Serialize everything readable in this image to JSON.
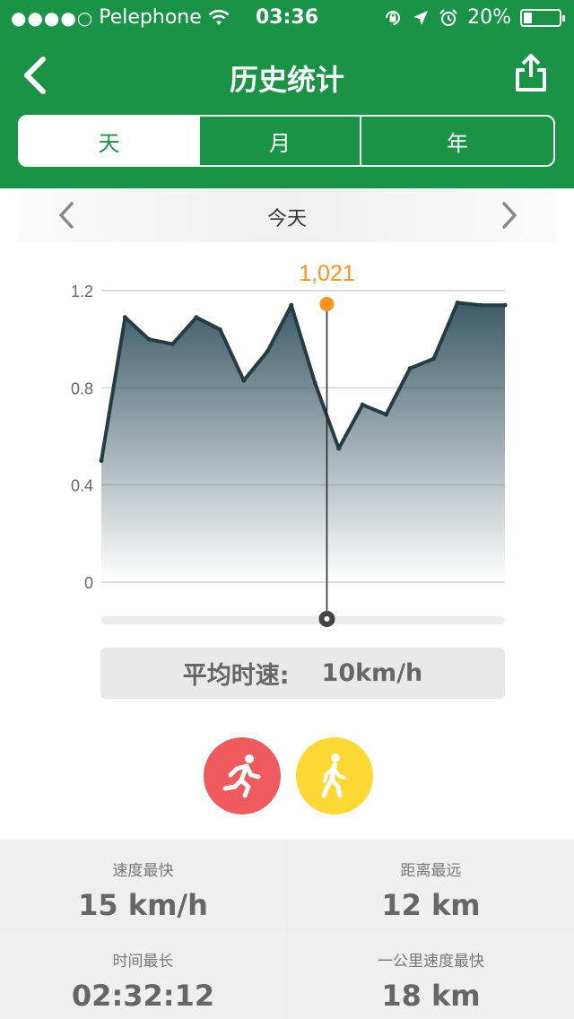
{
  "status_bar": {
    "signal": "●●●●○",
    "carrier": "Pelephone",
    "time": "03:36",
    "battery": "20%"
  },
  "nav": {
    "title": "历史统计"
  },
  "tabs": [
    {
      "label": "天",
      "selected": true
    },
    {
      "label": "月",
      "selected": false
    },
    {
      "label": "年",
      "selected": false
    }
  ],
  "date_nav": {
    "label": "今天"
  },
  "chart_data": {
    "type": "area",
    "x": [
      0,
      1,
      2,
      3,
      4,
      5,
      6,
      7,
      8,
      9,
      10,
      11,
      12,
      13,
      14,
      15,
      16,
      17
    ],
    "values": [
      0.5,
      1.09,
      1.0,
      0.98,
      1.09,
      1.04,
      0.83,
      0.95,
      1.14,
      0.82,
      0.55,
      0.73,
      0.69,
      0.88,
      0.92,
      1.15,
      1.14,
      1.14
    ],
    "ylim": [
      0,
      1.2
    ],
    "y_ticks": [
      "1.2",
      "0.8",
      "0.4",
      "0"
    ],
    "y_tick_values": [
      1.2,
      0.8,
      0.4,
      0
    ],
    "grid": true,
    "selected_index": 9.5,
    "selected_label": "1,021",
    "colors": {
      "line": "#263b43",
      "fill_top": "#3d5b66",
      "marker": "#f7931e"
    }
  },
  "average": {
    "label": "平均时速:",
    "value": "10km/h"
  },
  "activities": [
    {
      "name": "running",
      "icon": "running-icon",
      "color": "#ee5a5d"
    },
    {
      "name": "walking",
      "icon": "walking-icon",
      "color": "#fdd835"
    }
  ],
  "stats": [
    {
      "label": "速度最快",
      "value": "15 km/h"
    },
    {
      "label": "距离最远",
      "value": "12 km"
    },
    {
      "label": "时间最长",
      "value": "02:32:12"
    },
    {
      "label": "一公里速度最快",
      "value": "18 km"
    }
  ],
  "colors": {
    "brand_green": "#1a9346"
  }
}
